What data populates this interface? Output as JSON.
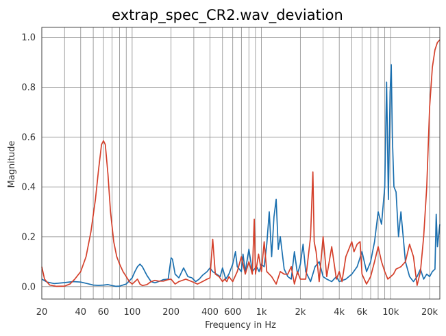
{
  "chart_data": {
    "type": "line",
    "title": "extrap_spec_CR2.wav_deviation",
    "xlabel": "Frequency in Hz",
    "ylabel": "Magnitude",
    "xscale": "log",
    "xlim": [
      20,
      24000
    ],
    "ylim": [
      -0.05,
      1.04
    ],
    "grid": true,
    "x_ticks": [
      20,
      40,
      60,
      100,
      200,
      400,
      600,
      1000,
      2000,
      4000,
      6000,
      10000,
      20000
    ],
    "x_tick_labels": [
      "20",
      "40",
      "60",
      "100",
      "200",
      "400",
      "600",
      "1k",
      "2k",
      "4k",
      "6k",
      "10k",
      "20k"
    ],
    "y_ticks": [
      0.0,
      0.2,
      0.4,
      0.6,
      0.8,
      1.0
    ],
    "y_tick_labels": [
      "0.0",
      "0.2",
      "0.4",
      "0.6",
      "0.8",
      "1.0"
    ],
    "series": [
      {
        "color": "#1a6faf",
        "points": [
          [
            20,
            0.03
          ],
          [
            22,
            0.018
          ],
          [
            25,
            0.012
          ],
          [
            30,
            0.016
          ],
          [
            35,
            0.02
          ],
          [
            40,
            0.018
          ],
          [
            45,
            0.012
          ],
          [
            50,
            0.006
          ],
          [
            55,
            0.005
          ],
          [
            60,
            0.006
          ],
          [
            65,
            0.008
          ],
          [
            70,
            0.004
          ],
          [
            75,
            0.001
          ],
          [
            80,
            0.002
          ],
          [
            90,
            0.01
          ],
          [
            100,
            0.035
          ],
          [
            105,
            0.06
          ],
          [
            110,
            0.08
          ],
          [
            115,
            0.09
          ],
          [
            120,
            0.08
          ],
          [
            130,
            0.045
          ],
          [
            140,
            0.02
          ],
          [
            150,
            0.015
          ],
          [
            160,
            0.02
          ],
          [
            175,
            0.028
          ],
          [
            190,
            0.03
          ],
          [
            200,
            0.115
          ],
          [
            205,
            0.11
          ],
          [
            215,
            0.05
          ],
          [
            230,
            0.035
          ],
          [
            250,
            0.075
          ],
          [
            270,
            0.04
          ],
          [
            290,
            0.035
          ],
          [
            310,
            0.02
          ],
          [
            330,
            0.03
          ],
          [
            350,
            0.045
          ],
          [
            380,
            0.06
          ],
          [
            400,
            0.075
          ],
          [
            420,
            0.06
          ],
          [
            450,
            0.05
          ],
          [
            480,
            0.04
          ],
          [
            500,
            0.075
          ],
          [
            530,
            0.03
          ],
          [
            560,
            0.05
          ],
          [
            600,
            0.09
          ],
          [
            630,
            0.14
          ],
          [
            650,
            0.08
          ],
          [
            700,
            0.06
          ],
          [
            720,
            0.13
          ],
          [
            750,
            0.06
          ],
          [
            800,
            0.15
          ],
          [
            850,
            0.06
          ],
          [
            880,
            0.07
          ],
          [
            920,
            0.08
          ],
          [
            960,
            0.06
          ],
          [
            1000,
            0.09
          ],
          [
            1050,
            0.08
          ],
          [
            1100,
            0.17
          ],
          [
            1150,
            0.3
          ],
          [
            1200,
            0.12
          ],
          [
            1250,
            0.28
          ],
          [
            1300,
            0.35
          ],
          [
            1350,
            0.15
          ],
          [
            1400,
            0.2
          ],
          [
            1500,
            0.07
          ],
          [
            1600,
            0.04
          ],
          [
            1700,
            0.03
          ],
          [
            1800,
            0.14
          ],
          [
            1900,
            0.05
          ],
          [
            2000,
            0.09
          ],
          [
            2100,
            0.17
          ],
          [
            2200,
            0.06
          ],
          [
            2400,
            0.02
          ],
          [
            2600,
            0.08
          ],
          [
            2800,
            0.1
          ],
          [
            3000,
            0.04
          ],
          [
            3200,
            0.03
          ],
          [
            3500,
            0.02
          ],
          [
            3800,
            0.04
          ],
          [
            4000,
            0.02
          ],
          [
            4500,
            0.03
          ],
          [
            5000,
            0.05
          ],
          [
            5500,
            0.08
          ],
          [
            6000,
            0.14
          ],
          [
            6500,
            0.06
          ],
          [
            7000,
            0.1
          ],
          [
            7500,
            0.18
          ],
          [
            8000,
            0.3
          ],
          [
            8500,
            0.25
          ],
          [
            9000,
            0.4
          ],
          [
            9300,
            0.82
          ],
          [
            9600,
            0.35
          ],
          [
            9900,
            0.78
          ],
          [
            10100,
            0.89
          ],
          [
            10300,
            0.6
          ],
          [
            10600,
            0.4
          ],
          [
            11000,
            0.38
          ],
          [
            11500,
            0.2
          ],
          [
            12000,
            0.3
          ],
          [
            13000,
            0.1
          ],
          [
            14000,
            0.04
          ],
          [
            15000,
            0.02
          ],
          [
            16000,
            0.04
          ],
          [
            17000,
            0.07
          ],
          [
            18000,
            0.03
          ],
          [
            19000,
            0.05
          ],
          [
            20000,
            0.04
          ],
          [
            21000,
            0.06
          ],
          [
            22000,
            0.07
          ],
          [
            22500,
            0.29
          ],
          [
            23000,
            0.16
          ],
          [
            24000,
            0.25
          ]
        ]
      },
      {
        "color": "#d43f2a",
        "points": [
          [
            20,
            0.08
          ],
          [
            21,
            0.03
          ],
          [
            23,
            0.006
          ],
          [
            26,
            0.001
          ],
          [
            30,
            0.002
          ],
          [
            33,
            0.01
          ],
          [
            36,
            0.03
          ],
          [
            40,
            0.06
          ],
          [
            44,
            0.12
          ],
          [
            48,
            0.22
          ],
          [
            52,
            0.35
          ],
          [
            55,
            0.47
          ],
          [
            58,
            0.57
          ],
          [
            60,
            0.585
          ],
          [
            62,
            0.57
          ],
          [
            65,
            0.45
          ],
          [
            68,
            0.3
          ],
          [
            72,
            0.18
          ],
          [
            76,
            0.12
          ],
          [
            80,
            0.09
          ],
          [
            85,
            0.06
          ],
          [
            90,
            0.04
          ],
          [
            95,
            0.02
          ],
          [
            100,
            0.01
          ],
          [
            105,
            0.02
          ],
          [
            110,
            0.03
          ],
          [
            115,
            0.01
          ],
          [
            120,
            0.004
          ],
          [
            130,
            0.008
          ],
          [
            140,
            0.02
          ],
          [
            150,
            0.025
          ],
          [
            160,
            0.022
          ],
          [
            175,
            0.022
          ],
          [
            190,
            0.028
          ],
          [
            200,
            0.03
          ],
          [
            215,
            0.01
          ],
          [
            230,
            0.02
          ],
          [
            260,
            0.03
          ],
          [
            290,
            0.02
          ],
          [
            320,
            0.01
          ],
          [
            350,
            0.02
          ],
          [
            380,
            0.03
          ],
          [
            400,
            0.035
          ],
          [
            420,
            0.19
          ],
          [
            440,
            0.05
          ],
          [
            470,
            0.04
          ],
          [
            500,
            0.02
          ],
          [
            520,
            0.03
          ],
          [
            540,
            0.02
          ],
          [
            560,
            0.04
          ],
          [
            600,
            0.02
          ],
          [
            650,
            0.06
          ],
          [
            700,
            0.12
          ],
          [
            750,
            0.05
          ],
          [
            800,
            0.1
          ],
          [
            850,
            0.05
          ],
          [
            880,
            0.27
          ],
          [
            900,
            0.05
          ],
          [
            950,
            0.13
          ],
          [
            1000,
            0.06
          ],
          [
            1050,
            0.18
          ],
          [
            1100,
            0.06
          ],
          [
            1200,
            0.04
          ],
          [
            1300,
            0.01
          ],
          [
            1400,
            0.06
          ],
          [
            1500,
            0.05
          ],
          [
            1600,
            0.05
          ],
          [
            1700,
            0.08
          ],
          [
            1800,
            0.01
          ],
          [
            1900,
            0.06
          ],
          [
            2000,
            0.03
          ],
          [
            2200,
            0.03
          ],
          [
            2400,
            0.2
          ],
          [
            2500,
            0.46
          ],
          [
            2560,
            0.18
          ],
          [
            2650,
            0.14
          ],
          [
            2800,
            0.02
          ],
          [
            3000,
            0.2
          ],
          [
            3200,
            0.04
          ],
          [
            3500,
            0.16
          ],
          [
            3800,
            0.03
          ],
          [
            4000,
            0.06
          ],
          [
            4200,
            0.02
          ],
          [
            4500,
            0.12
          ],
          [
            5000,
            0.18
          ],
          [
            5200,
            0.14
          ],
          [
            5500,
            0.17
          ],
          [
            5800,
            0.18
          ],
          [
            6000,
            0.05
          ],
          [
            6500,
            0.01
          ],
          [
            7000,
            0.04
          ],
          [
            7500,
            0.1
          ],
          [
            8000,
            0.16
          ],
          [
            8500,
            0.1
          ],
          [
            9000,
            0.06
          ],
          [
            9500,
            0.03
          ],
          [
            10000,
            0.04
          ],
          [
            10500,
            0.05
          ],
          [
            11000,
            0.07
          ],
          [
            12000,
            0.08
          ],
          [
            13000,
            0.1
          ],
          [
            14000,
            0.17
          ],
          [
            15000,
            0.12
          ],
          [
            16000,
            0.005
          ],
          [
            17000,
            0.06
          ],
          [
            18000,
            0.2
          ],
          [
            19000,
            0.4
          ],
          [
            20000,
            0.72
          ],
          [
            21000,
            0.88
          ],
          [
            22000,
            0.95
          ],
          [
            23000,
            0.98
          ],
          [
            24000,
            0.99
          ]
        ]
      }
    ]
  }
}
